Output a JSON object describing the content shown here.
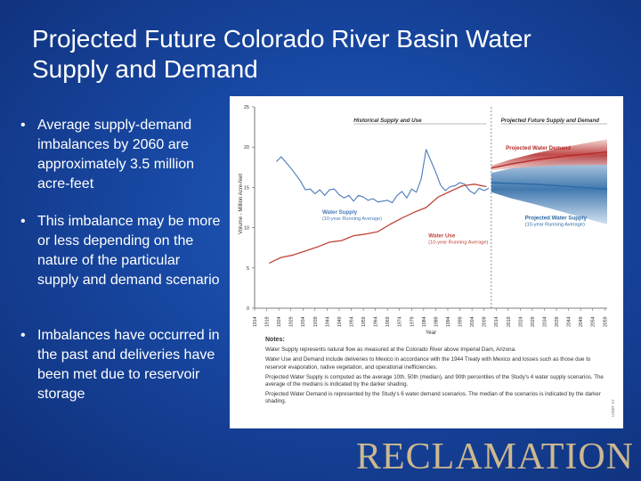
{
  "title": "Projected Future Colorado River Basin Water Supply and Demand",
  "bullets": [
    "Average supply-demand imbalances by 2060 are approximately 3.5 million acre-feet",
    "This imbalance may be more or less depending on the nature of the particular supply and demand scenario",
    "Imbalances have occurred in the past and deliveries have been met due to reservoir storage"
  ],
  "bullet_symbol": "•",
  "logo_text": "RECLAMATION",
  "chart_data": {
    "type": "line",
    "ylabel": "Volume - Million Acre-feet",
    "xlabel": "Year",
    "ylim": [
      0,
      25
    ],
    "xlim": [
      1914,
      2060
    ],
    "yticks": [
      0,
      5,
      10,
      15,
      20,
      25
    ],
    "xticks": [
      "1914",
      "1919",
      "1924",
      "1929",
      "1934",
      "1939",
      "1944",
      "1949",
      "1954",
      "1959",
      "1964",
      "1969",
      "1974",
      "1979",
      "1984",
      "1989",
      "1994",
      "1999",
      "2004",
      "2009",
      "2014",
      "2019",
      "2024",
      "2029",
      "2034",
      "2039",
      "2044",
      "2049",
      "2054",
      "2059"
    ],
    "section_labels": [
      "Historical Supply and Use",
      "Projected Future Supply and Demand"
    ],
    "divider_year": 2012,
    "series": [
      {
        "name": "Water Supply (10-year Running Average)",
        "color": "#4a7ab8",
        "x": [
          1923,
          1925,
          1927,
          1929,
          1931,
          1933,
          1935,
          1937,
          1939,
          1941,
          1943,
          1945,
          1947,
          1949,
          1951,
          1953,
          1955,
          1957,
          1959,
          1961,
          1963,
          1965,
          1967,
          1969,
          1971,
          1973,
          1975,
          1977,
          1979,
          1981,
          1983,
          1985,
          1987,
          1989,
          1991,
          1993,
          1995,
          1997,
          1999,
          2001,
          2003,
          2005,
          2007,
          2009,
          2011
        ],
        "values": [
          18.2,
          18.8,
          18.1,
          17.4,
          16.6,
          15.8,
          14.7,
          14.8,
          14.2,
          14.7,
          14.0,
          14.7,
          14.8,
          14.1,
          13.7,
          14.0,
          13.3,
          14.0,
          13.8,
          13.4,
          13.6,
          13.2,
          13.3,
          13.4,
          13.1,
          14.0,
          14.5,
          13.7,
          14.8,
          14.4,
          16.1,
          19.7,
          18.3,
          16.9,
          15.3,
          14.6,
          15.1,
          15.2,
          15.6,
          15.4,
          14.6,
          14.2,
          14.9,
          14.6,
          14.9
        ]
      },
      {
        "name": "Water Use (10-year Running Average)",
        "color": "#c0463a",
        "x": [
          1920,
          1925,
          1930,
          1935,
          1940,
          1945,
          1950,
          1955,
          1960,
          1965,
          1970,
          1975,
          1980,
          1985,
          1990,
          1995,
          2000,
          2005,
          2010
        ],
        "values": [
          5.6,
          6.3,
          6.6,
          7.1,
          7.6,
          8.2,
          8.4,
          9.0,
          9.2,
          9.5,
          10.4,
          11.2,
          11.9,
          12.5,
          13.8,
          14.5,
          15.2,
          15.4,
          15.1
        ]
      },
      {
        "name": "Projected Water Demand",
        "color": "#b52a2a",
        "x": [
          2012,
          2020,
          2030,
          2040,
          2050,
          2060
        ],
        "values": [
          17.4,
          17.9,
          18.4,
          18.8,
          19.1,
          19.4
        ]
      },
      {
        "name": "Projected Water Supply (10-year Running Average)",
        "color": "#2d6aa6",
        "x": [
          2012,
          2020,
          2030,
          2040,
          2050,
          2060
        ],
        "values": [
          15.6,
          15.5,
          15.4,
          15.2,
          15.0,
          14.8
        ]
      }
    ],
    "annotations": {
      "supply": [
        "Water Supply",
        "(10-year Running Average)"
      ],
      "use": [
        "Water Use",
        "(10-year Running Average)"
      ],
      "demand_proj": [
        "Projected Water Demand"
      ],
      "supply_proj": [
        "Projected Water Supply",
        "(10-year Running Average)"
      ]
    },
    "colors": {
      "supply": "#4a7ab8",
      "use": "#c0463a",
      "demand": "#b52a2a",
      "supply_proj": "#2d6aa6"
    }
  },
  "notes": {
    "title": "Notes:",
    "lines": [
      "Water Supply represents natural flow as measured at the Colorado River above Imperial Dam, Arizona.",
      "Water Use and Demand include deliveries to Mexico in accordance with the 1944 Treaty with Mexico and losses such as those due to reservoir evaporation, native vegetation, and operational inefficiencies.",
      "Projected Water Supply is computed as the average 10th, 50th (median), and 90th percentiles of the Study's 4 water supply scenarios. The average of the medians is indicated by the darker shading.",
      "Projected Water Demand is represented by the Study's 6 water demand scenarios. The median of the scenarios is indicated by the darker shading."
    ],
    "credit": "USBR '12"
  }
}
